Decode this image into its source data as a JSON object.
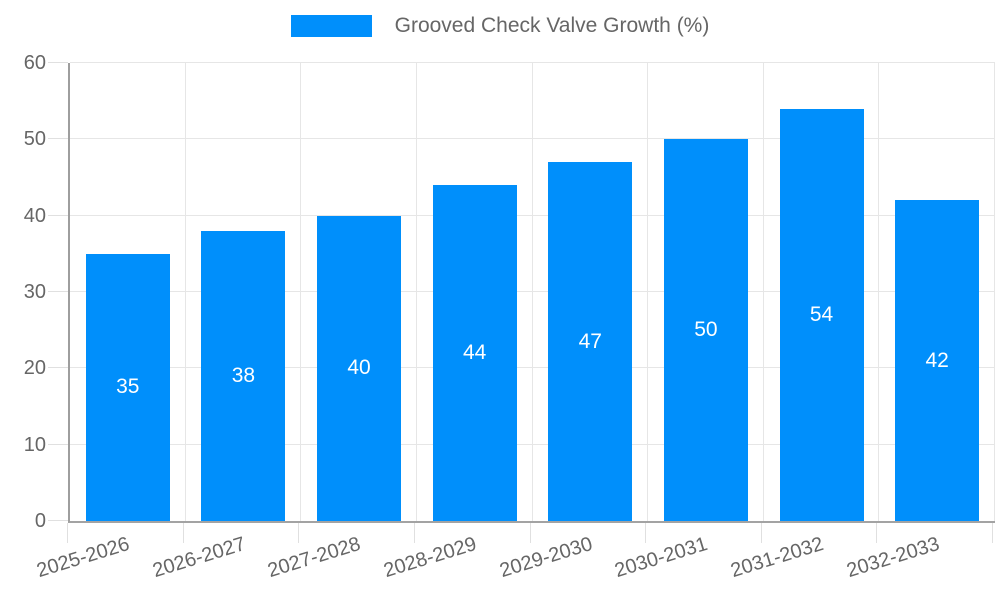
{
  "chart_data": {
    "type": "bar",
    "title": "Grooved Check Valve Growth (%)",
    "legend_label": "Grooved Check Valve Growth (%)",
    "legend_position": "top",
    "categories": [
      "2025-2026",
      "2026-2027",
      "2027-2028",
      "2028-2029",
      "2029-2030",
      "2030-2031",
      "2031-2032",
      "2032-2033"
    ],
    "values": [
      35,
      38,
      40,
      44,
      47,
      50,
      54,
      42
    ],
    "xlabel": "",
    "ylabel": "",
    "ylim": [
      0,
      60
    ],
    "yticks": [
      0,
      10,
      20,
      30,
      40,
      50,
      60
    ],
    "grid": true,
    "data_labels_shown": true,
    "colors": {
      "bar": "#008ffb",
      "bar_label": "#ffffff",
      "axis_text": "#666666",
      "grid_line": "#e6e6e6",
      "axis_line": "#9e9e9e"
    }
  }
}
